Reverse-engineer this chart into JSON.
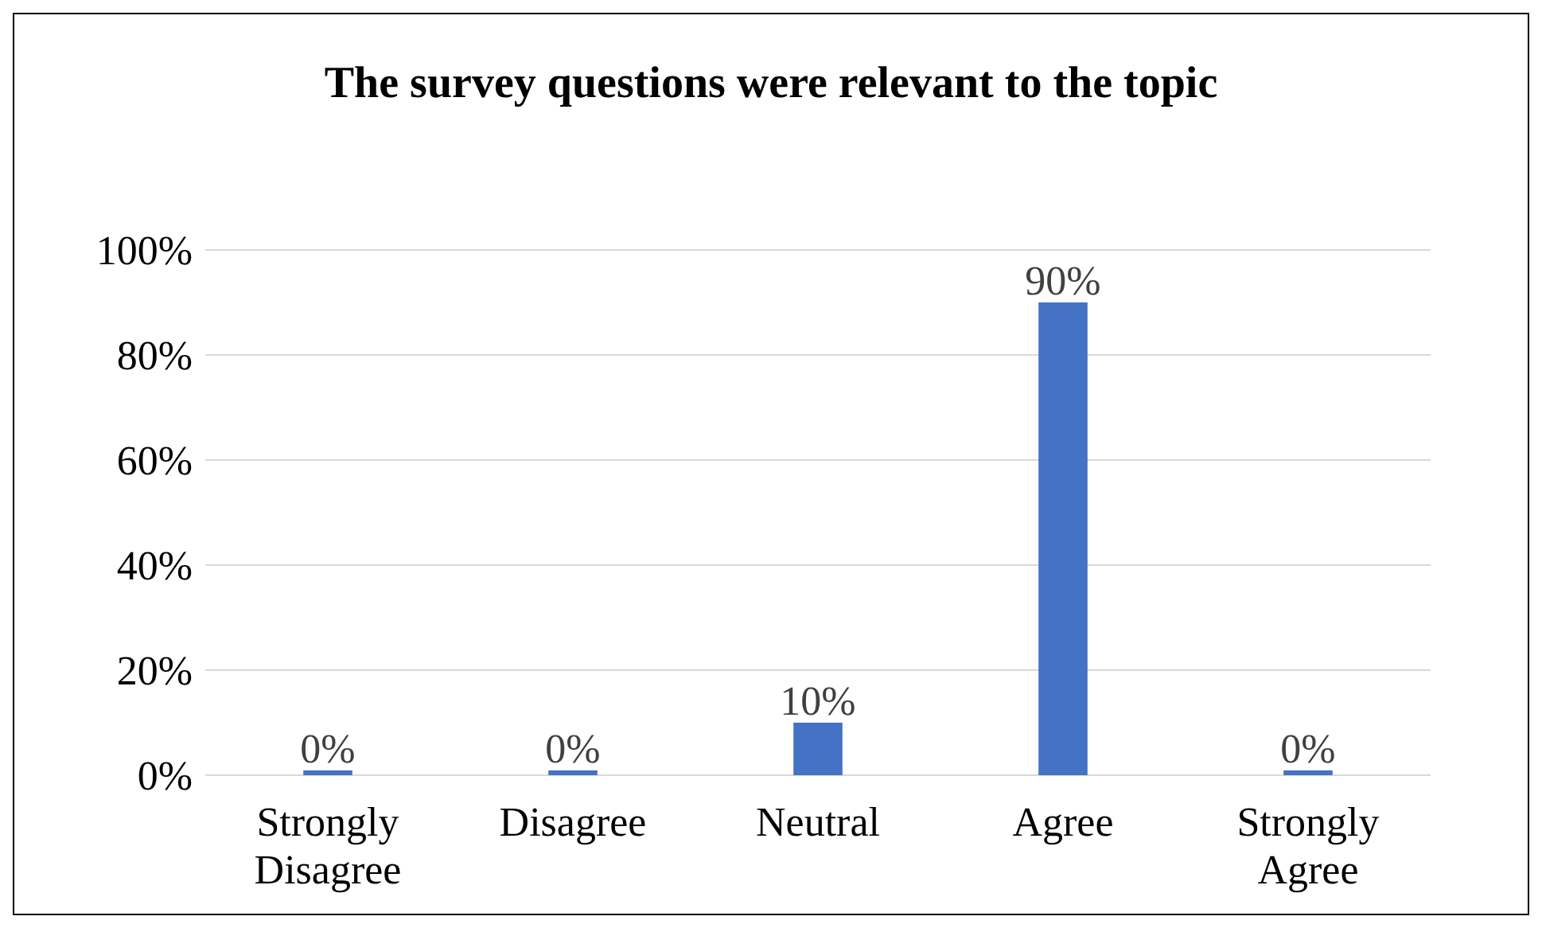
{
  "chart_data": {
    "type": "bar",
    "title": "The survey questions were relevant to the topic",
    "categories": [
      "Strongly Disagree",
      "Disagree",
      "Neutral",
      "Agree",
      "Strongly Agree"
    ],
    "values": [
      0,
      0,
      10,
      90,
      0
    ],
    "value_labels": [
      "0%",
      "0%",
      "10%",
      "90%",
      "0%"
    ],
    "color": "#4472c4",
    "ylim": [
      0,
      100
    ],
    "yticks": [
      {
        "value": 0,
        "label": "0%"
      },
      {
        "value": 20,
        "label": "20%"
      },
      {
        "value": 40,
        "label": "40%"
      },
      {
        "value": 60,
        "label": "60%"
      },
      {
        "value": 80,
        "label": "80%"
      },
      {
        "value": 100,
        "label": "100%"
      }
    ],
    "grid": "y"
  }
}
